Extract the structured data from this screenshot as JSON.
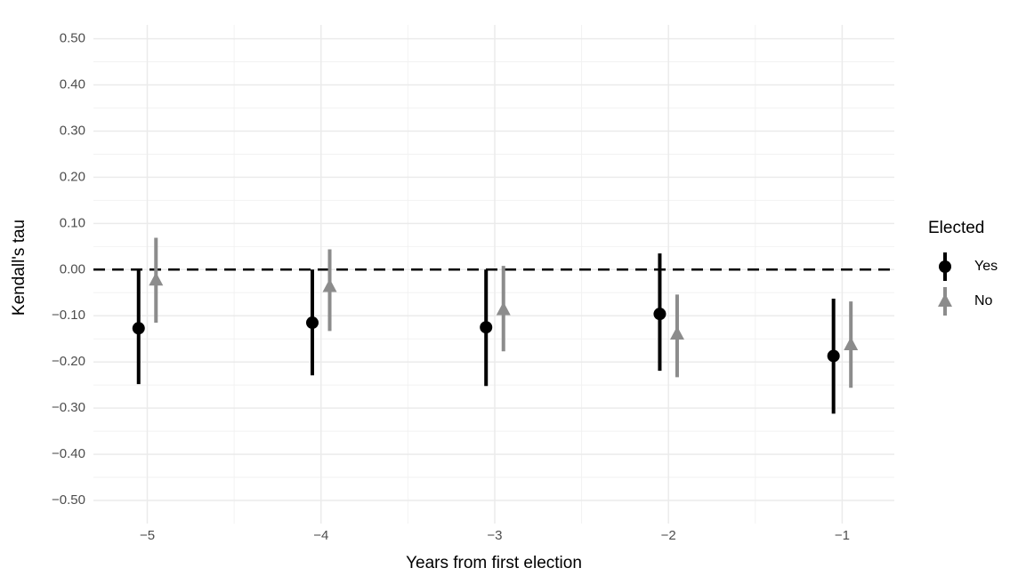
{
  "chart_data": {
    "type": "pointrange",
    "x_label": "Years from first election",
    "y_label": "Kendall's tau",
    "x": [
      -5,
      -4,
      -3,
      -2,
      -1
    ],
    "xlim": [
      -5.31,
      -0.7
    ],
    "xticks": [
      {
        "value": -5,
        "label": "−5"
      },
      {
        "value": -4,
        "label": "−4"
      },
      {
        "value": -3,
        "label": "−3"
      },
      {
        "value": -2,
        "label": "−2"
      },
      {
        "value": -1,
        "label": "−1"
      }
    ],
    "ylim": [
      -0.55,
      0.53
    ],
    "yticks": [
      {
        "value": 0.5,
        "label": "0.50"
      },
      {
        "value": 0.4,
        "label": "0.40"
      },
      {
        "value": 0.3,
        "label": "0.30"
      },
      {
        "value": 0.2,
        "label": "0.20"
      },
      {
        "value": 0.1,
        "label": "0.10"
      },
      {
        "value": 0,
        "label": "0.00"
      },
      {
        "value": -0.1,
        "label": "−0.10"
      },
      {
        "value": -0.2,
        "label": "−0.20"
      },
      {
        "value": -0.3,
        "label": "−0.30"
      },
      {
        "value": -0.4,
        "label": "−0.40"
      },
      {
        "value": -0.5,
        "label": "−0.50"
      }
    ],
    "grid": true,
    "reference_line": 0,
    "legend_title": "Elected",
    "legend_position": "right",
    "series": [
      {
        "name": "Yes",
        "color": "#000000",
        "marker": "circle",
        "values": [
          -0.127,
          -0.115,
          -0.125,
          -0.096,
          -0.187
        ],
        "lower": [
          -0.248,
          -0.229,
          -0.252,
          -0.219,
          -0.312
        ],
        "upper": [
          0.0,
          0.0,
          0.0,
          0.035,
          -0.063
        ]
      },
      {
        "name": "No",
        "color": "#8c8c8c",
        "marker": "triangle",
        "values": [
          -0.023,
          -0.037,
          -0.087,
          -0.14,
          -0.163
        ],
        "lower": [
          -0.115,
          -0.133,
          -0.177,
          -0.233,
          -0.256
        ],
        "upper": [
          0.069,
          0.044,
          0.008,
          -0.054,
          -0.069
        ]
      }
    ]
  }
}
